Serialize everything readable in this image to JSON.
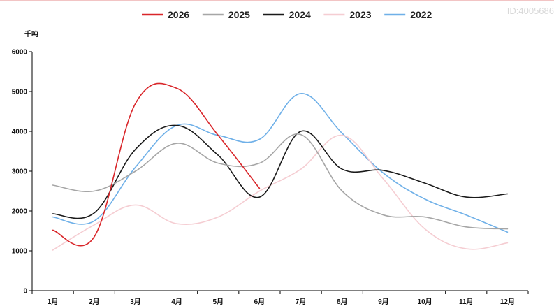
{
  "watermark": "ID:4005686",
  "chart_data": {
    "type": "line",
    "title": "",
    "xlabel": "",
    "ylabel": "千吨",
    "categories": [
      "1月",
      "2月",
      "3月",
      "4月",
      "5月",
      "6月",
      "7月",
      "8月",
      "9月",
      "10月",
      "11月",
      "12月"
    ],
    "ylim": [
      0,
      6000
    ],
    "yticks": [
      0,
      1000,
      2000,
      3000,
      4000,
      5000,
      6000
    ],
    "grid": false,
    "legend_position": "top-center",
    "series": [
      {
        "name": "2026",
        "color": "#d9262a",
        "values": [
          1520,
          1350,
          4700,
          5080,
          3900,
          2570,
          null,
          null,
          null,
          null,
          null,
          null
        ]
      },
      {
        "name": "2025",
        "color": "#a6a6a6",
        "values": [
          2650,
          2500,
          3000,
          3700,
          3200,
          3200,
          3920,
          2500,
          1900,
          1850,
          1600,
          1550
        ]
      },
      {
        "name": "2024",
        "color": "#1a1a1a",
        "values": [
          1930,
          1950,
          3550,
          4150,
          3400,
          2350,
          4000,
          3050,
          3020,
          2700,
          2350,
          2430
        ]
      },
      {
        "name": "2023",
        "color": "#f5cdd2",
        "values": [
          1020,
          1650,
          2150,
          1680,
          1850,
          2500,
          3050,
          3900,
          2800,
          1550,
          1050,
          1200
        ]
      },
      {
        "name": "2022",
        "color": "#6fb0e8",
        "values": [
          1850,
          1750,
          3100,
          4150,
          3900,
          3800,
          4950,
          3950,
          2950,
          2300,
          1900,
          1470
        ]
      }
    ]
  }
}
